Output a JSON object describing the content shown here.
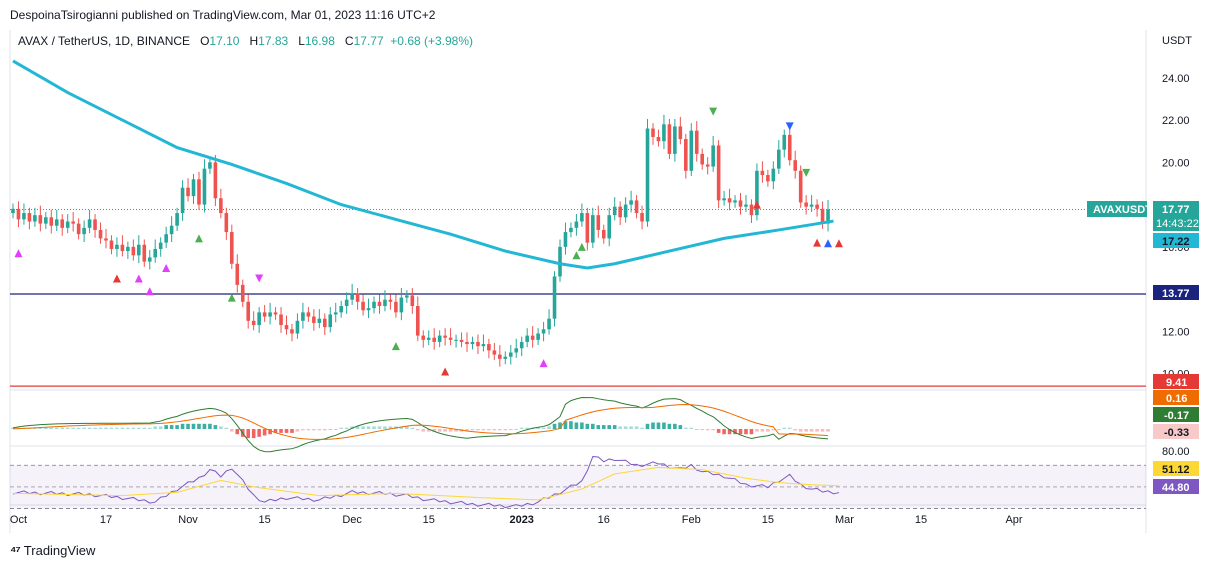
{
  "header": {
    "publish_line": "DespoinaTsirogianni published on TradingView.com, Mar 01, 2023 11:16 UTC+2"
  },
  "ohlc": {
    "symbol": "AVAX / TetherUS, 1D, BINANCE",
    "o_label": "O",
    "o": "17.10",
    "h_label": "H",
    "h": "17.83",
    "l_label": "L",
    "l": "16.98",
    "c_label": "C",
    "c": "17.77",
    "change": "+0.68 (+3.98%)"
  },
  "footer": {
    "brand": "TradingView"
  },
  "colors": {
    "up": "#26a69a",
    "down": "#ef5350",
    "ma": "#22b7d4",
    "support": "#1a237e",
    "resistance": "#e53935",
    "macd": "#2e7d32",
    "signal": "#ef6c00",
    "rsi": "#7e57c2",
    "rsi_ma": "#fdd835"
  },
  "chart_data": [
    {
      "type": "candlestick",
      "title": "AVAX / TetherUS, 1D, BINANCE",
      "ylabel": "USDT",
      "ylim": [
        8.8,
        25.6
      ],
      "y_ticks": [
        "24.00",
        "22.00",
        "20.00",
        "18.00",
        "16.00",
        "14.00",
        "12.00",
        "10.00"
      ],
      "x_ticks": [
        {
          "label": "Oct",
          "day": 1
        },
        {
          "label": "17",
          "day": 17
        },
        {
          "label": "Nov",
          "day": 32
        },
        {
          "label": "15",
          "day": 46
        },
        {
          "label": "Dec",
          "day": 62
        },
        {
          "label": "15",
          "day": 76
        },
        {
          "label": "2023",
          "day": 93
        },
        {
          "label": "16",
          "day": 108
        },
        {
          "label": "Feb",
          "day": 124
        },
        {
          "label": "15",
          "day": 138
        },
        {
          "label": "Mar",
          "day": 152
        },
        {
          "label": "15",
          "day": 166
        },
        {
          "label": "Apr",
          "day": 183
        }
      ],
      "closes": [
        17.8,
        17.3,
        17.6,
        17.2,
        17.5,
        17.1,
        17.4,
        17.0,
        17.3,
        16.9,
        17.2,
        17.1,
        16.6,
        16.9,
        17.3,
        16.8,
        16.4,
        16.3,
        15.9,
        16.1,
        15.8,
        16.0,
        15.6,
        16.1,
        15.3,
        15.5,
        15.9,
        16.2,
        16.6,
        17.0,
        17.6,
        18.8,
        18.4,
        19.2,
        18.0,
        19.7,
        20.0,
        18.3,
        17.6,
        16.7,
        15.2,
        14.2,
        13.4,
        12.5,
        12.3,
        12.9,
        12.7,
        12.9,
        12.8,
        12.3,
        12.1,
        11.9,
        12.5,
        12.9,
        12.7,
        12.4,
        12.6,
        12.2,
        12.8,
        12.9,
        13.2,
        13.5,
        13.8,
        13.4,
        13.0,
        13.1,
        13.4,
        13.2,
        13.5,
        13.4,
        12.9,
        13.6,
        13.7,
        13.2,
        11.8,
        11.6,
        11.7,
        11.5,
        11.8,
        11.7,
        11.6,
        11.6,
        11.5,
        11.4,
        11.5,
        11.3,
        11.4,
        11.1,
        10.9,
        10.7,
        10.8,
        11.0,
        11.2,
        11.5,
        11.8,
        11.6,
        11.9,
        12.1,
        12.6,
        14.6,
        16.0,
        16.7,
        16.9,
        17.2,
        17.6,
        16.2,
        17.5,
        16.8,
        16.4,
        17.5,
        17.9,
        17.4,
        18.0,
        18.2,
        17.6,
        17.2,
        21.6,
        21.2,
        21.0,
        21.8,
        20.4,
        21.7,
        21.1,
        19.6,
        21.5,
        20.4,
        19.9,
        19.8,
        20.8,
        18.2,
        18.3,
        18.1,
        18.2,
        17.9,
        18.0,
        17.5,
        19.6,
        19.4,
        19.1,
        19.7,
        20.6,
        21.3,
        20.1,
        19.6,
        18.1,
        17.9,
        18.0,
        17.8,
        17.1,
        17.77
      ],
      "series": [
        {
          "name": "MA",
          "values_at_days": [
            [
              0,
              24.8
            ],
            [
              10,
              23.3
            ],
            [
              20,
              22.0
            ],
            [
              30,
              20.7
            ],
            [
              40,
              19.9
            ],
            [
              50,
              19.0
            ],
            [
              60,
              18.0
            ],
            [
              70,
              17.3
            ],
            [
              80,
              16.6
            ],
            [
              90,
              15.8
            ],
            [
              100,
              15.2
            ],
            [
              105,
              15.0
            ],
            [
              110,
              15.2
            ],
            [
              120,
              15.8
            ],
            [
              130,
              16.4
            ],
            [
              140,
              16.8
            ],
            [
              150,
              17.22
            ]
          ]
        },
        {
          "name": "Horizontal support",
          "value": 13.77
        },
        {
          "name": "Horizontal resistance",
          "value": 9.41
        }
      ],
      "labels": [
        {
          "text": "AVAXUSDT",
          "kind": "symbol"
        },
        {
          "text": "17.77",
          "kind": "last"
        },
        {
          "text": "14:43:22",
          "kind": "countdown"
        },
        {
          "text": "17.22",
          "kind": "ma"
        },
        {
          "text": "13.77",
          "kind": "support"
        },
        {
          "text": "9.41",
          "kind": "resistance"
        }
      ],
      "markers": [
        {
          "day": 1,
          "kind": "purple-up"
        },
        {
          "day": 19,
          "kind": "red-up"
        },
        {
          "day": 23,
          "kind": "purple-up"
        },
        {
          "day": 25,
          "kind": "purple-up"
        },
        {
          "day": 28,
          "kind": "purple-up"
        },
        {
          "day": 34,
          "kind": "green-up"
        },
        {
          "day": 40,
          "kind": "green-up"
        },
        {
          "day": 45,
          "kind": "purple-down"
        },
        {
          "day": 70,
          "kind": "green-up"
        },
        {
          "day": 79,
          "kind": "red-up"
        },
        {
          "day": 97,
          "kind": "purple-up"
        },
        {
          "day": 103,
          "kind": "green-up"
        },
        {
          "day": 104,
          "kind": "green-up"
        },
        {
          "day": 128,
          "kind": "green-down"
        },
        {
          "day": 136,
          "kind": "red-up"
        },
        {
          "day": 142,
          "kind": "blue-down"
        },
        {
          "day": 145,
          "kind": "green-down"
        },
        {
          "day": 147,
          "kind": "red-up"
        },
        {
          "day": 149,
          "kind": "blue-up"
        },
        {
          "day": 151,
          "kind": "red-up"
        }
      ]
    },
    {
      "type": "macd",
      "labels": [
        "0.16",
        "-0.17",
        "-0.33"
      ],
      "histogram": [
        0.1,
        0.1,
        0.1,
        0.1,
        0.1,
        0.1,
        0.1,
        0.1,
        0.1,
        0.1,
        0.1,
        0.1,
        0.1,
        0.1,
        0.1,
        0.1,
        0.1,
        0.1,
        0.1,
        0.1,
        0.1,
        0.1,
        0.1,
        0.1,
        0.1,
        0.1,
        0.2,
        0.2,
        0.3,
        0.3,
        0.3,
        0.4,
        0.4,
        0.4,
        0.4,
        0.4,
        0.4,
        0.3,
        0.2,
        0.1,
        -0.2,
        -0.4,
        -0.6,
        -0.7,
        -0.7,
        -0.6,
        -0.5,
        -0.4,
        -0.3,
        -0.3,
        -0.3,
        -0.3,
        -0.2,
        -0.1,
        -0.1,
        -0.1,
        -0.1,
        -0.1,
        0.0,
        0.0,
        0.1,
        0.1,
        0.2,
        0.2,
        0.2,
        0.2,
        0.2,
        0.2,
        0.2,
        0.2,
        0.2,
        0.2,
        0.2,
        0.1,
        -0.1,
        -0.2,
        -0.2,
        -0.2,
        -0.2,
        -0.2,
        -0.2,
        -0.2,
        -0.2,
        -0.2,
        -0.1,
        -0.1,
        -0.1,
        -0.1,
        -0.1,
        -0.1,
        -0.1,
        0.0,
        0.0,
        0.1,
        0.1,
        0.1,
        0.1,
        0.1,
        0.2,
        0.4,
        0.5,
        0.6,
        0.6,
        0.5,
        0.5,
        0.4,
        0.4,
        0.3,
        0.3,
        0.3,
        0.3,
        0.2,
        0.2,
        0.2,
        0.2,
        0.1,
        0.4,
        0.5,
        0.5,
        0.5,
        0.4,
        0.4,
        0.3,
        0.1,
        0.1,
        0.0,
        0.0,
        -0.1,
        -0.1,
        -0.3,
        -0.4,
        -0.4,
        -0.4,
        -0.4,
        -0.4,
        -0.4,
        -0.2,
        -0.2,
        -0.2,
        -0.1,
        0.0,
        0.1,
        0.1,
        -0.1,
        -0.2,
        -0.2,
        -0.2,
        -0.2,
        -0.2,
        -0.2
      ]
    },
    {
      "type": "rsi",
      "labels": [
        "80.00",
        "51.12",
        "44.80"
      ],
      "ylim": [
        25,
        85
      ],
      "levels": [
        70,
        50,
        30
      ],
      "rsi_at_days": [
        [
          0,
          45
        ],
        [
          8,
          44
        ],
        [
          14,
          43
        ],
        [
          20,
          40
        ],
        [
          26,
          36
        ],
        [
          30,
          48
        ],
        [
          34,
          58
        ],
        [
          36,
          66
        ],
        [
          38,
          60
        ],
        [
          40,
          68
        ],
        [
          42,
          55
        ],
        [
          44,
          42
        ],
        [
          46,
          36
        ],
        [
          50,
          40
        ],
        [
          56,
          38
        ],
        [
          62,
          45
        ],
        [
          68,
          44
        ],
        [
          72,
          42
        ],
        [
          76,
          38
        ],
        [
          80,
          36
        ],
        [
          84,
          34
        ],
        [
          88,
          33
        ],
        [
          92,
          32
        ],
        [
          96,
          36
        ],
        [
          100,
          45
        ],
        [
          104,
          55
        ],
        [
          106,
          78
        ],
        [
          108,
          74
        ],
        [
          110,
          76
        ],
        [
          114,
          70
        ],
        [
          118,
          72
        ],
        [
          122,
          66
        ],
        [
          124,
          70
        ],
        [
          126,
          64
        ],
        [
          130,
          60
        ],
        [
          134,
          52
        ],
        [
          138,
          50
        ],
        [
          140,
          56
        ],
        [
          142,
          60
        ],
        [
          144,
          52
        ],
        [
          146,
          48
        ],
        [
          148,
          46
        ],
        [
          151,
          44.8
        ]
      ],
      "rsi_ma_at_days": [
        [
          0,
          44
        ],
        [
          20,
          42
        ],
        [
          30,
          45
        ],
        [
          38,
          56
        ],
        [
          44,
          50
        ],
        [
          56,
          42
        ],
        [
          70,
          44
        ],
        [
          86,
          40
        ],
        [
          96,
          38
        ],
        [
          104,
          48
        ],
        [
          110,
          62
        ],
        [
          118,
          68
        ],
        [
          126,
          66
        ],
        [
          134,
          58
        ],
        [
          140,
          54
        ],
        [
          146,
          52
        ],
        [
          151,
          51.12
        ]
      ]
    }
  ]
}
